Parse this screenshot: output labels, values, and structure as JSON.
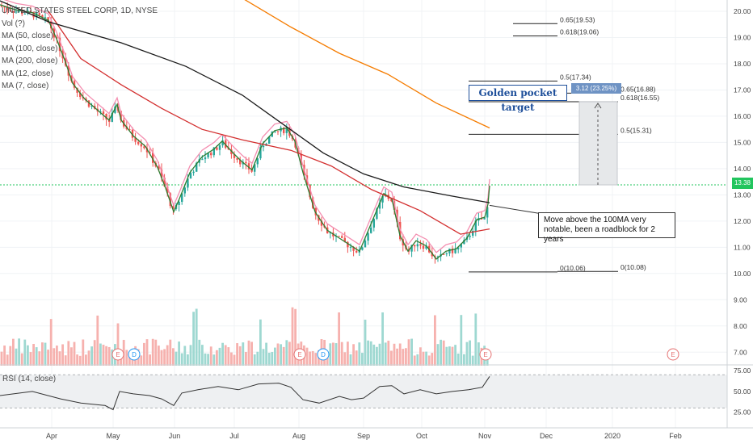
{
  "chart_data": {
    "type": "candlestick",
    "title": "UNITED STATES STEEL CORP, 1D, NYSE",
    "legend": [
      "Vol (?)",
      "MA (50, close)",
      "MA (100, close)",
      "MA (200, close)",
      "MA (12, close)",
      "MA (7, close)"
    ],
    "x_tick_labels": [
      "Apr",
      "May",
      "Jun",
      "Jul",
      "Aug",
      "Sep",
      "Oct",
      "Nov",
      "Dec",
      "2020",
      "Feb"
    ],
    "y_tick_labels": [
      "20.00",
      "19.00",
      "18.00",
      "17.00",
      "16.00",
      "15.00",
      "14.00",
      "13.00",
      "12.00",
      "11.00",
      "10.00",
      "9.00",
      "8.00",
      "7.00"
    ],
    "ylim": [
      6.5,
      20.3
    ],
    "last_price": "13.38",
    "ma100_end": 12.7,
    "ma200_end": 15.55,
    "fib_levels": [
      {
        "label": "0.65(19.53)",
        "value": 19.53
      },
      {
        "label": "0.618(19.06)",
        "value": 19.06
      },
      {
        "label": "0.5(17.34)",
        "value": 17.34
      },
      {
        "label": "0.65(16.88)",
        "value": 16.88
      },
      {
        "label": "0.618(16.55)",
        "value": 16.55
      },
      {
        "label": "0.5(15.31)",
        "value": 15.31
      },
      {
        "label": "0(10.06)",
        "value": 10.06
      },
      {
        "label": "0(10.08)",
        "value": 10.08
      }
    ],
    "measure_label": "3.12 (23.25%) 312",
    "annotation": "Golden pocket target",
    "callout": [
      "Move above the 100MA very",
      "notable, been a roadblock for 2 years"
    ],
    "earnings_marker": "E",
    "dividend_marker": "D",
    "rsi": {
      "title": "RSI (14, close)",
      "ticks": [
        "75.00",
        "50.00",
        "25.00"
      ],
      "ylim": [
        10,
        80
      ]
    },
    "colors": {
      "up": "#26a69a",
      "down": "#ef5350",
      "ma50": "#d32f2f",
      "ma100": "#1a1a1a",
      "ma200": "#f57c00",
      "ma12": "#f48fb1",
      "ma7": "#2e7d32",
      "price_line": "#22c55e",
      "annotation": "#1e4f9a"
    }
  }
}
